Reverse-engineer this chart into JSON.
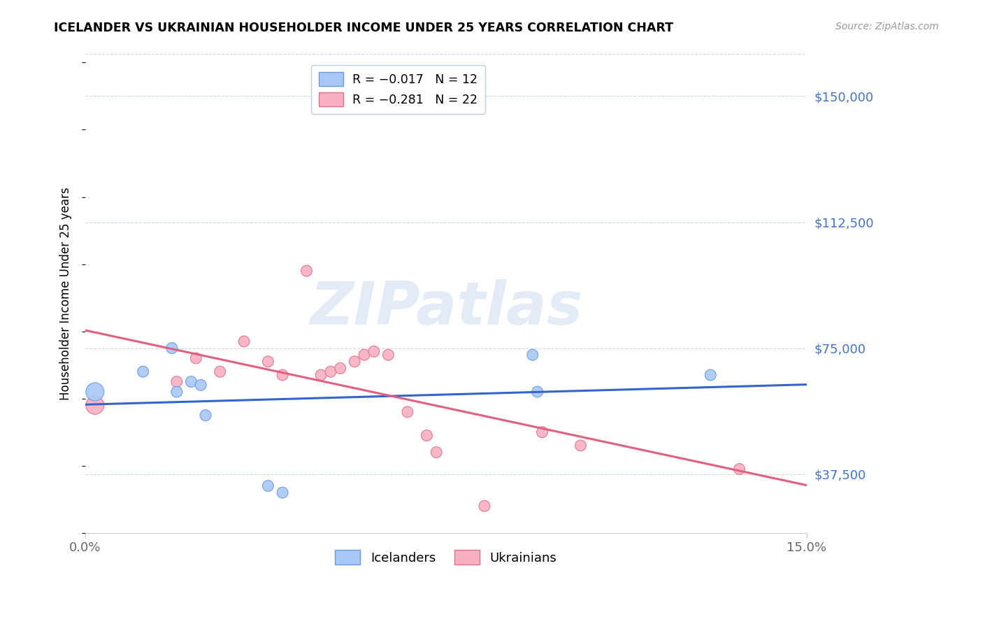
{
  "title": "ICELANDER VS UKRAINIAN HOUSEHOLDER INCOME UNDER 25 YEARS CORRELATION CHART",
  "source": "Source: ZipAtlas.com",
  "ylabel": "Householder Income Under 25 years",
  "xlim": [
    0.0,
    0.15
  ],
  "ylim": [
    20000,
    162500
  ],
  "yticks": [
    37500,
    75000,
    112500,
    150000
  ],
  "ytick_labels": [
    "$37,500",
    "$75,000",
    "$112,500",
    "$150,000"
  ],
  "watermark_text": "ZIPatlas",
  "icelanders": {
    "color": "#a8c8f8",
    "border_color": "#6699dd",
    "trend_color": "#3366cc",
    "x": [
      0.002,
      0.012,
      0.018,
      0.019,
      0.022,
      0.024,
      0.025,
      0.038,
      0.041,
      0.093,
      0.094,
      0.13
    ],
    "y": [
      62000,
      68000,
      75000,
      62000,
      65000,
      64000,
      55000,
      34000,
      32000,
      73000,
      62000,
      67000
    ],
    "sizes": [
      350,
      130,
      130,
      130,
      130,
      130,
      130,
      130,
      130,
      130,
      130,
      130
    ],
    "R": -0.017,
    "N": 12
  },
  "ukrainians": {
    "color": "#f8b0c0",
    "border_color": "#e07090",
    "trend_color": "#e06080",
    "x": [
      0.002,
      0.019,
      0.023,
      0.028,
      0.033,
      0.038,
      0.041,
      0.046,
      0.049,
      0.051,
      0.053,
      0.056,
      0.058,
      0.06,
      0.063,
      0.067,
      0.071,
      0.073,
      0.083,
      0.095,
      0.103,
      0.136
    ],
    "y": [
      58000,
      65000,
      72000,
      68000,
      77000,
      71000,
      67000,
      98000,
      67000,
      68000,
      69000,
      71000,
      73000,
      74000,
      73000,
      56000,
      49000,
      44000,
      28000,
      50000,
      46000,
      39000
    ],
    "sizes": [
      350,
      130,
      130,
      130,
      130,
      130,
      130,
      130,
      130,
      130,
      130,
      130,
      130,
      130,
      130,
      130,
      130,
      130,
      130,
      130,
      130,
      130
    ],
    "R": -0.281,
    "N": 22
  }
}
